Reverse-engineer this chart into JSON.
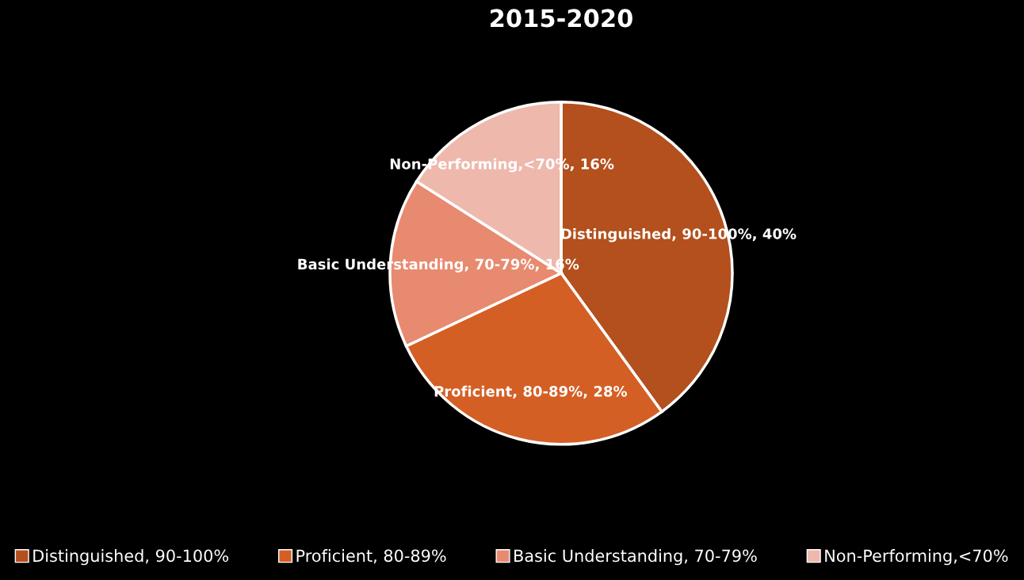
{
  "chart_data": {
    "type": "pie",
    "title": "2015-2020",
    "categories": [
      "Distinguished, 90-100%",
      "Proficient, 80-89%",
      "Basic Understanding, 70-79%",
      "Non-Performing,<70%"
    ],
    "values": [
      40,
      28,
      16,
      16
    ],
    "colors": [
      "#b3501d",
      "#d45f25",
      "#e88a70",
      "#eeb8ad"
    ],
    "value_labels": [
      "Distinguished, 90-100%, 40%",
      "Proficient, 80-89%, 28%",
      "Basic Understanding, 70-79%, 16%",
      "Non-Performing,<70%, 16%"
    ],
    "legend": "bottom"
  }
}
